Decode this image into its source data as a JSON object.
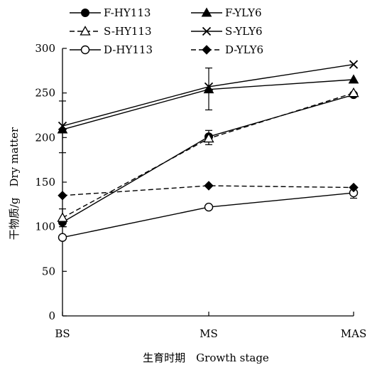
{
  "chart_data": {
    "type": "line",
    "title": "",
    "xlabel": "生育时期　Growth stage",
    "ylabel": "干物质/g　Dry matter",
    "categories": [
      "BS",
      "MS",
      "MAS"
    ],
    "ylim": [
      0,
      300
    ],
    "yticks": [
      0,
      50,
      100,
      150,
      200,
      250,
      300
    ],
    "grid": false,
    "legend_position": "top",
    "series": [
      {
        "name": "F-HY113",
        "values": [
          105,
          201,
          248
        ],
        "line": "solid",
        "marker": "filled-circle"
      },
      {
        "name": "F-YLY6",
        "values": [
          209,
          254,
          265
        ],
        "line": "solid",
        "marker": "filled-triangle"
      },
      {
        "name": "S-HY113",
        "values": [
          110,
          199,
          250
        ],
        "line": "dashed",
        "marker": "open-triangle"
      },
      {
        "name": "S-YLY6",
        "values": [
          213,
          257,
          282
        ],
        "line": "solid",
        "marker": "x-cross"
      },
      {
        "name": "D-HY113",
        "values": [
          88,
          122,
          138
        ],
        "line": "solid",
        "marker": "open-circle"
      },
      {
        "name": "D-YLY6",
        "values": [
          135,
          146,
          144
        ],
        "line": "dashed",
        "marker": "filled-diamond"
      }
    ],
    "error_bars": [
      {
        "series": "S-YLY6",
        "category": "BS",
        "low": 183,
        "high": 241
      },
      {
        "series": "S-YLY6",
        "category": "MS",
        "low": 231,
        "high": 278
      },
      {
        "series": "S-HY113",
        "category": "BS",
        "low": 100,
        "high": 120
      },
      {
        "series": "F-HY113",
        "category": "MS",
        "low": 192,
        "high": 208
      },
      {
        "series": "D-HY113",
        "category": "MAS",
        "low": 132,
        "high": 144
      }
    ]
  }
}
